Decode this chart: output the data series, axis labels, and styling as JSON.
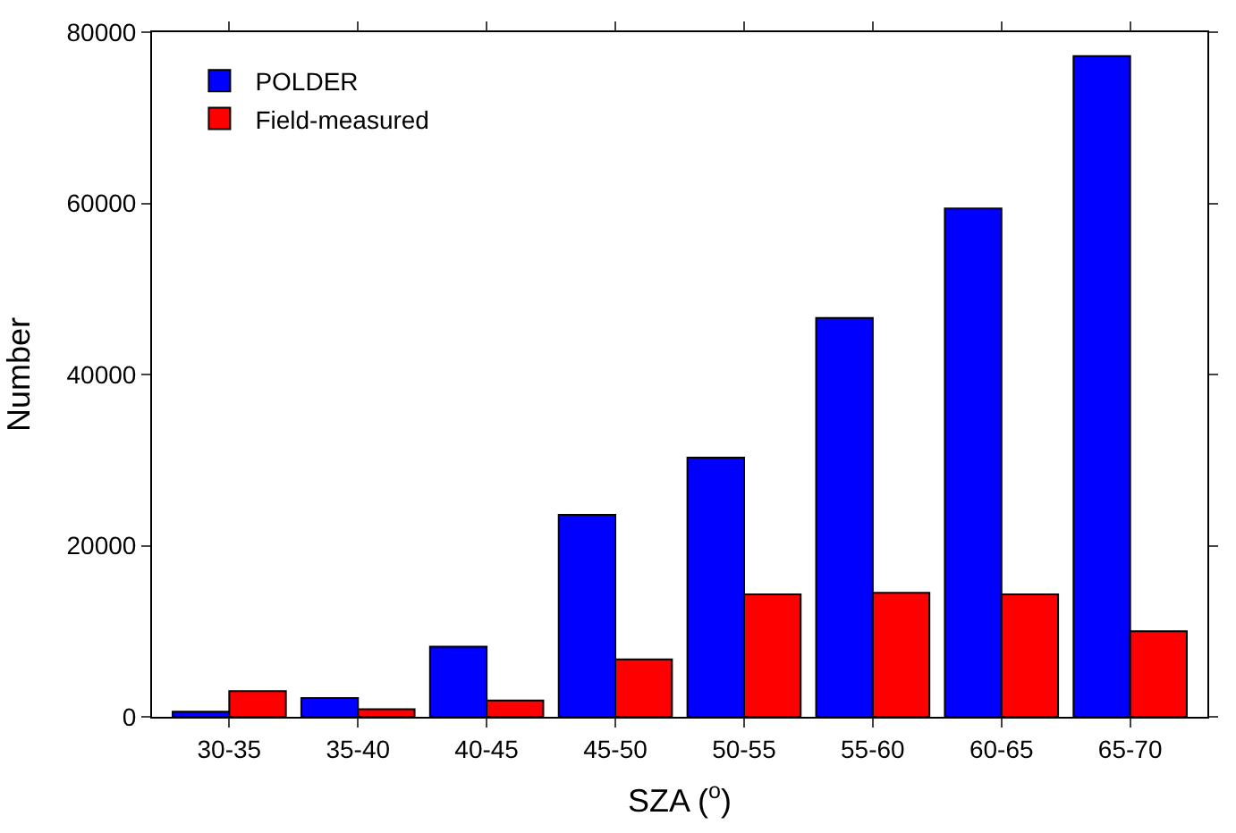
{
  "chart_data": {
    "type": "bar",
    "xlabel": "SZA ($^{o}$)",
    "ylabel": "Number",
    "categories": [
      "30-35",
      "35-40",
      "40-45",
      "45-50",
      "50-55",
      "55-60",
      "60-65",
      "65-70"
    ],
    "series": [
      {
        "name": "POLDER",
        "color": "#0000ff",
        "values": [
          600,
          2200,
          8200,
          23600,
          30300,
          46600,
          59400,
          77200
        ]
      },
      {
        "name": "Field-measured",
        "color": "#ff0000",
        "values": [
          3000,
          900,
          1900,
          6700,
          14300,
          14500,
          14300,
          10000
        ]
      }
    ],
    "ylim": [
      0,
      80000
    ],
    "yticks": [
      0,
      20000,
      40000,
      60000,
      80000
    ],
    "legend": "top left"
  }
}
